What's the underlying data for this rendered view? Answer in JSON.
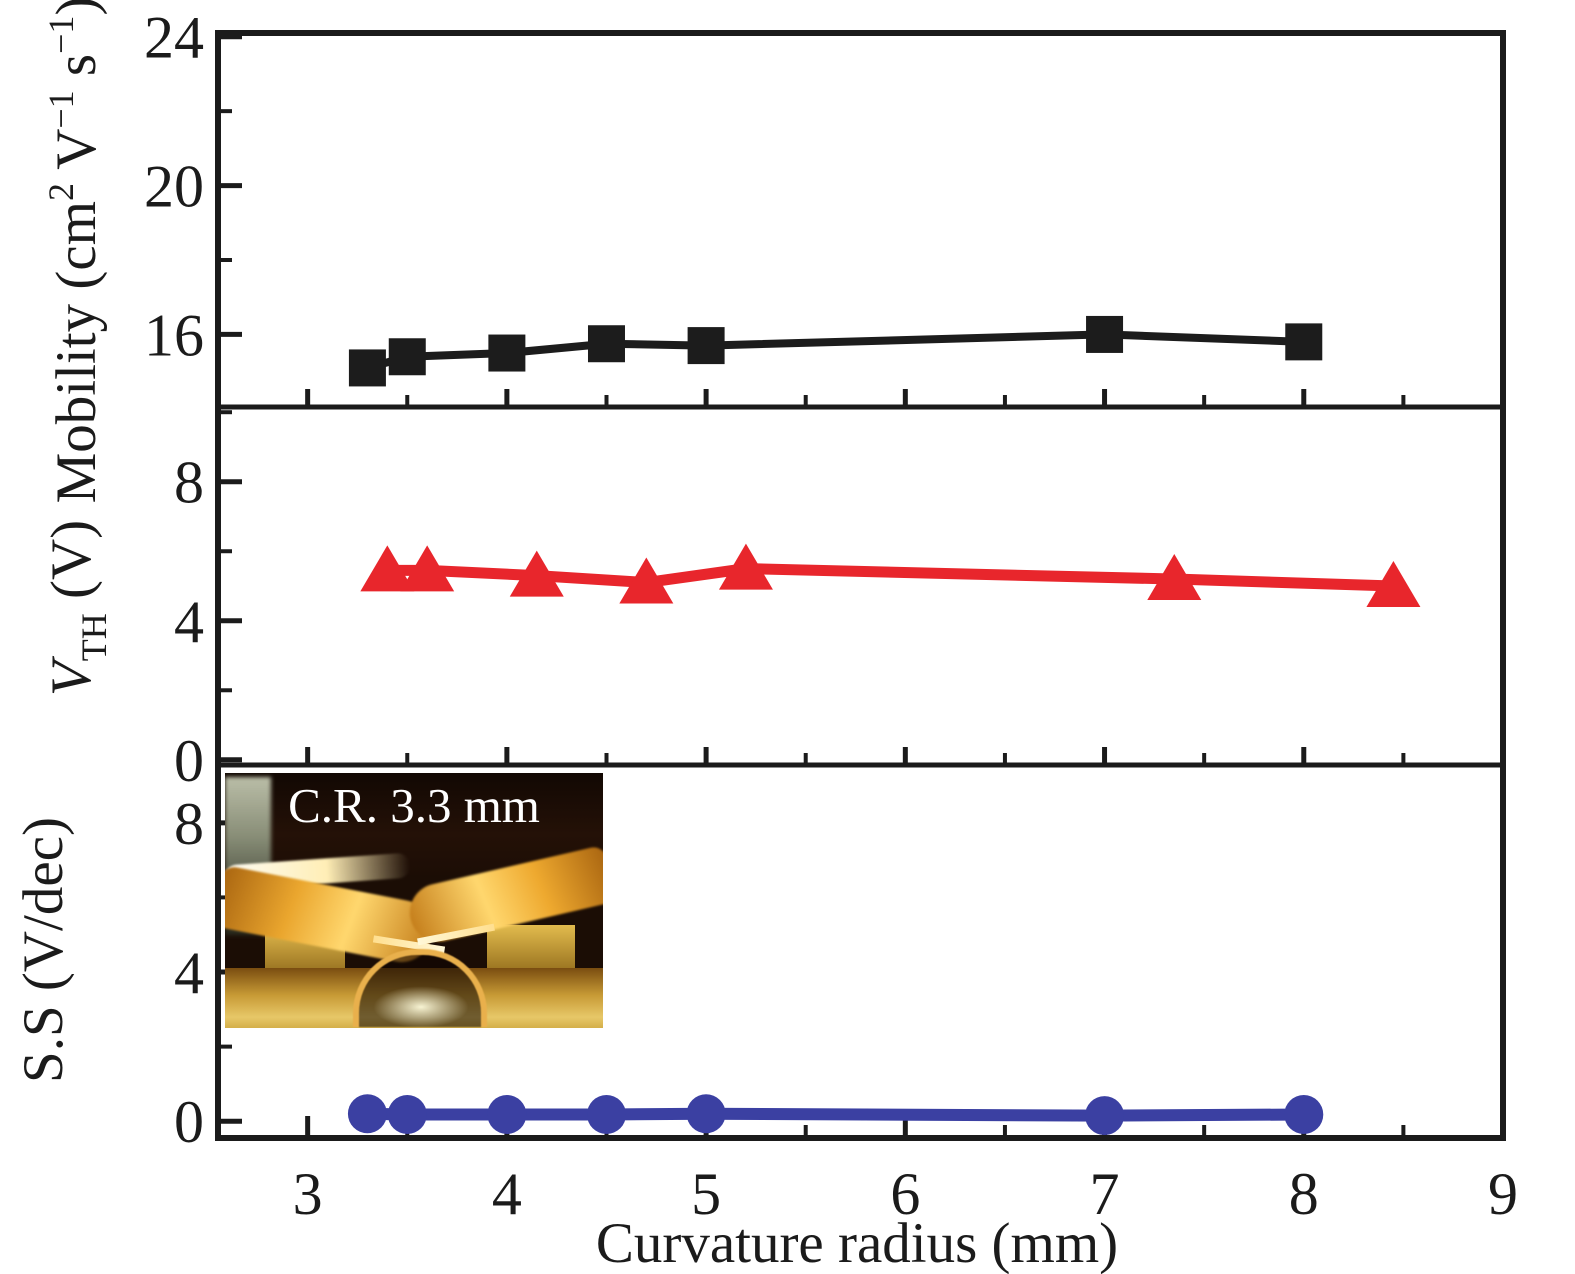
{
  "page": {
    "background": "#ffffff"
  },
  "chart_data": {
    "type": "line",
    "title": "",
    "xlabel": "Curvature radius (mm)",
    "xlim": [
      2.55,
      9.0
    ],
    "x_major_ticks": [
      3,
      4,
      5,
      6,
      7,
      8,
      9
    ],
    "x_major_labels": [
      "3",
      "4",
      "5",
      "6",
      "7",
      "8",
      "9"
    ],
    "x_minor_ticks": [
      3.5,
      4.5,
      5.5,
      6.5,
      7.5,
      8.5
    ],
    "frame_color": "#1b1b1b",
    "grid": "off",
    "legend": "none",
    "panels": [
      {
        "name": "mobility",
        "ylabel_text": "Mobility (cm2 V−1 s−1)",
        "ylabel_segments": [
          {
            "t": "Mobility (cm"
          },
          {
            "t": "2",
            "pos": "sup"
          },
          {
            "t": " V"
          },
          {
            "t": "−1",
            "pos": "sup"
          },
          {
            "t": " s"
          },
          {
            "t": "−1",
            "pos": "sup"
          },
          {
            "t": ")"
          }
        ],
        "ylim": [
          14.05,
          24.1
        ],
        "y_major_ticks": [
          16,
          20,
          24
        ],
        "y_major_labels": [
          "16",
          "20",
          "24"
        ],
        "y_minor_ticks": [
          18,
          22
        ],
        "series": {
          "name": "mobility",
          "color": "#1c1c1c",
          "marker": "square",
          "line_width": 8,
          "x": [
            3.3,
            3.5,
            4.0,
            4.5,
            5.0,
            7.0,
            8.0
          ],
          "y": [
            15.1,
            15.4,
            15.5,
            15.75,
            15.7,
            16.0,
            15.8
          ]
        }
      },
      {
        "name": "vth",
        "ylabel_text": "VTH (V)",
        "ylabel_segments": [
          {
            "t": "V",
            "style": "italic"
          },
          {
            "t": "TH",
            "pos": "sub"
          },
          {
            "t": " (V)"
          }
        ],
        "ylim": [
          -0.15,
          10.15
        ],
        "y_major_ticks": [
          0,
          4,
          8
        ],
        "y_major_labels": [
          "0",
          "4",
          "8"
        ],
        "y_minor_ticks": [
          2,
          6,
          10
        ],
        "series": {
          "name": "vth",
          "color": "#e8262c",
          "marker": "triangle",
          "line_width": 11,
          "x": [
            3.4,
            3.6,
            4.15,
            4.7,
            5.2,
            7.35,
            8.45
          ],
          "y": [
            5.45,
            5.45,
            5.3,
            5.1,
            5.5,
            5.2,
            5.0
          ]
        }
      },
      {
        "name": "ss",
        "ylabel_text": "S.S (V/dec)",
        "ylabel_segments": [
          {
            "t": "S.S (V/dec)"
          }
        ],
        "ylim": [
          -0.45,
          9.55
        ],
        "y_major_ticks": [
          0,
          4,
          8
        ],
        "y_major_labels": [
          "0",
          "4",
          "8"
        ],
        "y_minor_ticks": [
          2,
          6
        ],
        "series": {
          "name": "ss",
          "color": "#3b40a2",
          "marker": "circle",
          "line_width": 12,
          "x": [
            3.3,
            3.5,
            4.0,
            4.5,
            5.0,
            7.0,
            8.0
          ],
          "y": [
            0.2,
            0.18,
            0.18,
            0.18,
            0.2,
            0.15,
            0.18
          ]
        }
      }
    ],
    "inset": {
      "label": "C.R. 3.3 mm"
    }
  }
}
